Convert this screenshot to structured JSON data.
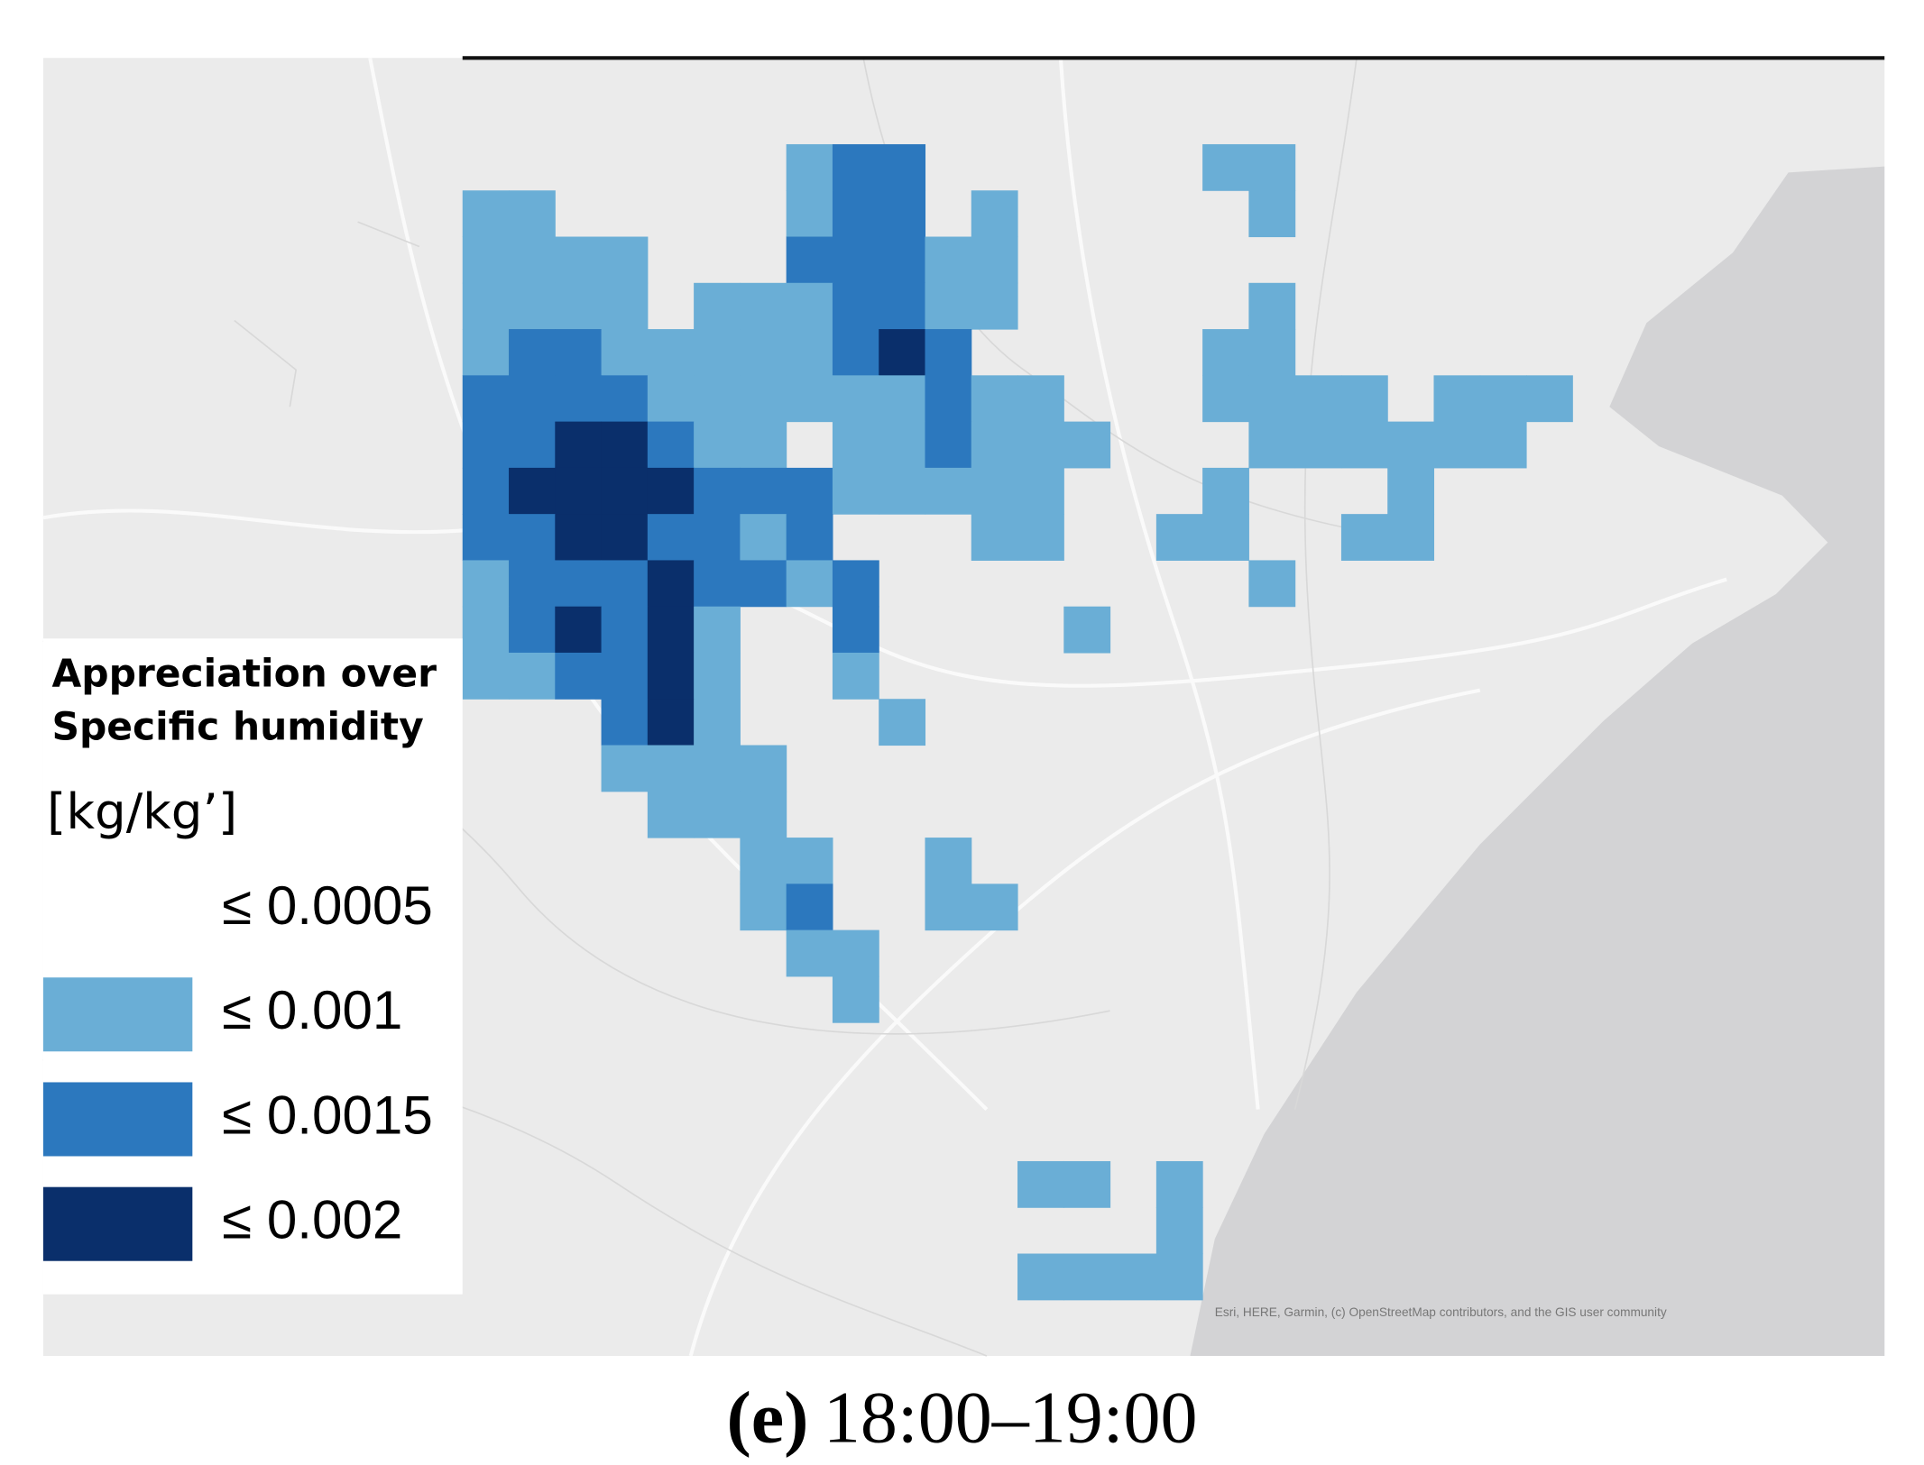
{
  "legend": {
    "title": [
      "Appreciation over",
      "Specific humidity"
    ],
    "unit": "[kg/kg’]",
    "items": [
      {
        "label": "≤ 0.0005",
        "color": null
      },
      {
        "label": "≤ 0.001",
        "color": "#6aaed6"
      },
      {
        "label": "≤ 0.0015",
        "color": "#2c78be"
      },
      {
        "label": "≤ 0.002",
        "color": "#0a2f6b"
      }
    ]
  },
  "grid": {
    "levels": [
      [
        0,
        0,
        0,
        0,
        0,
        0,
        0,
        1,
        2,
        2,
        0,
        0,
        0,
        0,
        0,
        0,
        1,
        1,
        0,
        0,
        0,
        0,
        0,
        0
      ],
      [
        1,
        1,
        0,
        0,
        0,
        0,
        0,
        1,
        2,
        2,
        0,
        1,
        0,
        0,
        0,
        0,
        0,
        1,
        0,
        0,
        0,
        0,
        0,
        0
      ],
      [
        1,
        1,
        1,
        1,
        0,
        0,
        0,
        2,
        2,
        2,
        1,
        1,
        0,
        0,
        0,
        0,
        0,
        0,
        0,
        0,
        0,
        0,
        0,
        0
      ],
      [
        1,
        1,
        1,
        1,
        0,
        1,
        1,
        1,
        2,
        2,
        1,
        1,
        0,
        0,
        0,
        0,
        0,
        1,
        0,
        0,
        0,
        0,
        0,
        0
      ],
      [
        1,
        2,
        2,
        1,
        1,
        1,
        1,
        1,
        2,
        3,
        2,
        0,
        0,
        0,
        0,
        0,
        1,
        1,
        0,
        0,
        0,
        0,
        0,
        0
      ],
      [
        2,
        2,
        2,
        2,
        1,
        1,
        1,
        1,
        1,
        1,
        2,
        1,
        1,
        0,
        0,
        0,
        1,
        1,
        1,
        1,
        0,
        1,
        1,
        1
      ],
      [
        2,
        2,
        3,
        3,
        2,
        1,
        1,
        0,
        1,
        1,
        2,
        1,
        1,
        1,
        0,
        0,
        0,
        1,
        1,
        1,
        1,
        1,
        1,
        0
      ],
      [
        2,
        3,
        3,
        3,
        3,
        2,
        2,
        2,
        1,
        1,
        1,
        1,
        1,
        0,
        0,
        0,
        1,
        0,
        0,
        0,
        1,
        0,
        0,
        0
      ],
      [
        2,
        2,
        3,
        3,
        2,
        2,
        1,
        2,
        0,
        0,
        0,
        1,
        1,
        0,
        0,
        1,
        1,
        0,
        0,
        1,
        1,
        0,
        0,
        0
      ],
      [
        1,
        2,
        2,
        2,
        3,
        2,
        2,
        1,
        2,
        0,
        0,
        0,
        0,
        0,
        0,
        0,
        0,
        1,
        0,
        0,
        0,
        0,
        0,
        0
      ],
      [
        1,
        2,
        3,
        2,
        3,
        1,
        0,
        0,
        2,
        0,
        0,
        0,
        0,
        1,
        0,
        0,
        0,
        0,
        0,
        0,
        0,
        0,
        0,
        0
      ],
      [
        1,
        1,
        2,
        2,
        3,
        1,
        0,
        0,
        1,
        0,
        0,
        0,
        0,
        0,
        0,
        0,
        0,
        0,
        0,
        0,
        0,
        0,
        0,
        0
      ],
      [
        0,
        0,
        0,
        2,
        3,
        1,
        0,
        0,
        0,
        1,
        0,
        0,
        0,
        0,
        0,
        0,
        0,
        0,
        0,
        0,
        0,
        0,
        0,
        0
      ],
      [
        0,
        0,
        0,
        1,
        1,
        1,
        1,
        0,
        0,
        0,
        0,
        0,
        0,
        0,
        0,
        0,
        0,
        0,
        0,
        0,
        0,
        0,
        0,
        0
      ],
      [
        0,
        0,
        0,
        0,
        1,
        1,
        1,
        0,
        0,
        0,
        0,
        0,
        0,
        0,
        0,
        0,
        0,
        0,
        0,
        0,
        0,
        0,
        0,
        0
      ],
      [
        0,
        0,
        0,
        0,
        0,
        0,
        1,
        1,
        0,
        0,
        1,
        0,
        0,
        0,
        0,
        0,
        0,
        0,
        0,
        0,
        0,
        0,
        0,
        0
      ],
      [
        0,
        0,
        0,
        0,
        0,
        0,
        1,
        2,
        0,
        0,
        1,
        1,
        0,
        0,
        0,
        0,
        0,
        0,
        0,
        0,
        0,
        0,
        0,
        0
      ],
      [
        0,
        0,
        0,
        0,
        0,
        0,
        0,
        1,
        1,
        0,
        0,
        0,
        0,
        0,
        0,
        0,
        0,
        0,
        0,
        0,
        0,
        0,
        0,
        0
      ],
      [
        0,
        0,
        0,
        0,
        0,
        0,
        0,
        0,
        1,
        0,
        0,
        0,
        0,
        0,
        0,
        0,
        0,
        0,
        0,
        0,
        0,
        0,
        0,
        0
      ],
      [
        0,
        0,
        0,
        0,
        0,
        0,
        0,
        0,
        0,
        0,
        0,
        0,
        0,
        0,
        0,
        0,
        0,
        0,
        0,
        0,
        0,
        0,
        0,
        0
      ],
      [
        0,
        0,
        0,
        0,
        0,
        0,
        0,
        0,
        0,
        0,
        0,
        0,
        0,
        0,
        0,
        0,
        0,
        0,
        0,
        0,
        0,
        0,
        0,
        0
      ],
      [
        0,
        0,
        0,
        0,
        0,
        0,
        0,
        0,
        0,
        0,
        0,
        0,
        0,
        0,
        0,
        0,
        0,
        0,
        0,
        0,
        0,
        0,
        0,
        0
      ],
      [
        0,
        0,
        0,
        0,
        0,
        0,
        0,
        0,
        0,
        0,
        0,
        0,
        1,
        1,
        0,
        1,
        0,
        0,
        0,
        0,
        0,
        0,
        0,
        0
      ],
      [
        0,
        0,
        0,
        0,
        0,
        0,
        0,
        0,
        0,
        0,
        0,
        0,
        0,
        0,
        0,
        1,
        0,
        0,
        0,
        0,
        0,
        0,
        0,
        0
      ],
      [
        0,
        0,
        0,
        0,
        0,
        0,
        0,
        0,
        0,
        0,
        0,
        0,
        1,
        1,
        1,
        1,
        0,
        0,
        0,
        0,
        0,
        0,
        0,
        0
      ]
    ]
  },
  "attribution": "Esri, HERE, Garmin, (c) OpenStreetMap contributors, and the GIS user community",
  "caption": {
    "label": "(e)",
    "text": "18:00–19:00"
  }
}
